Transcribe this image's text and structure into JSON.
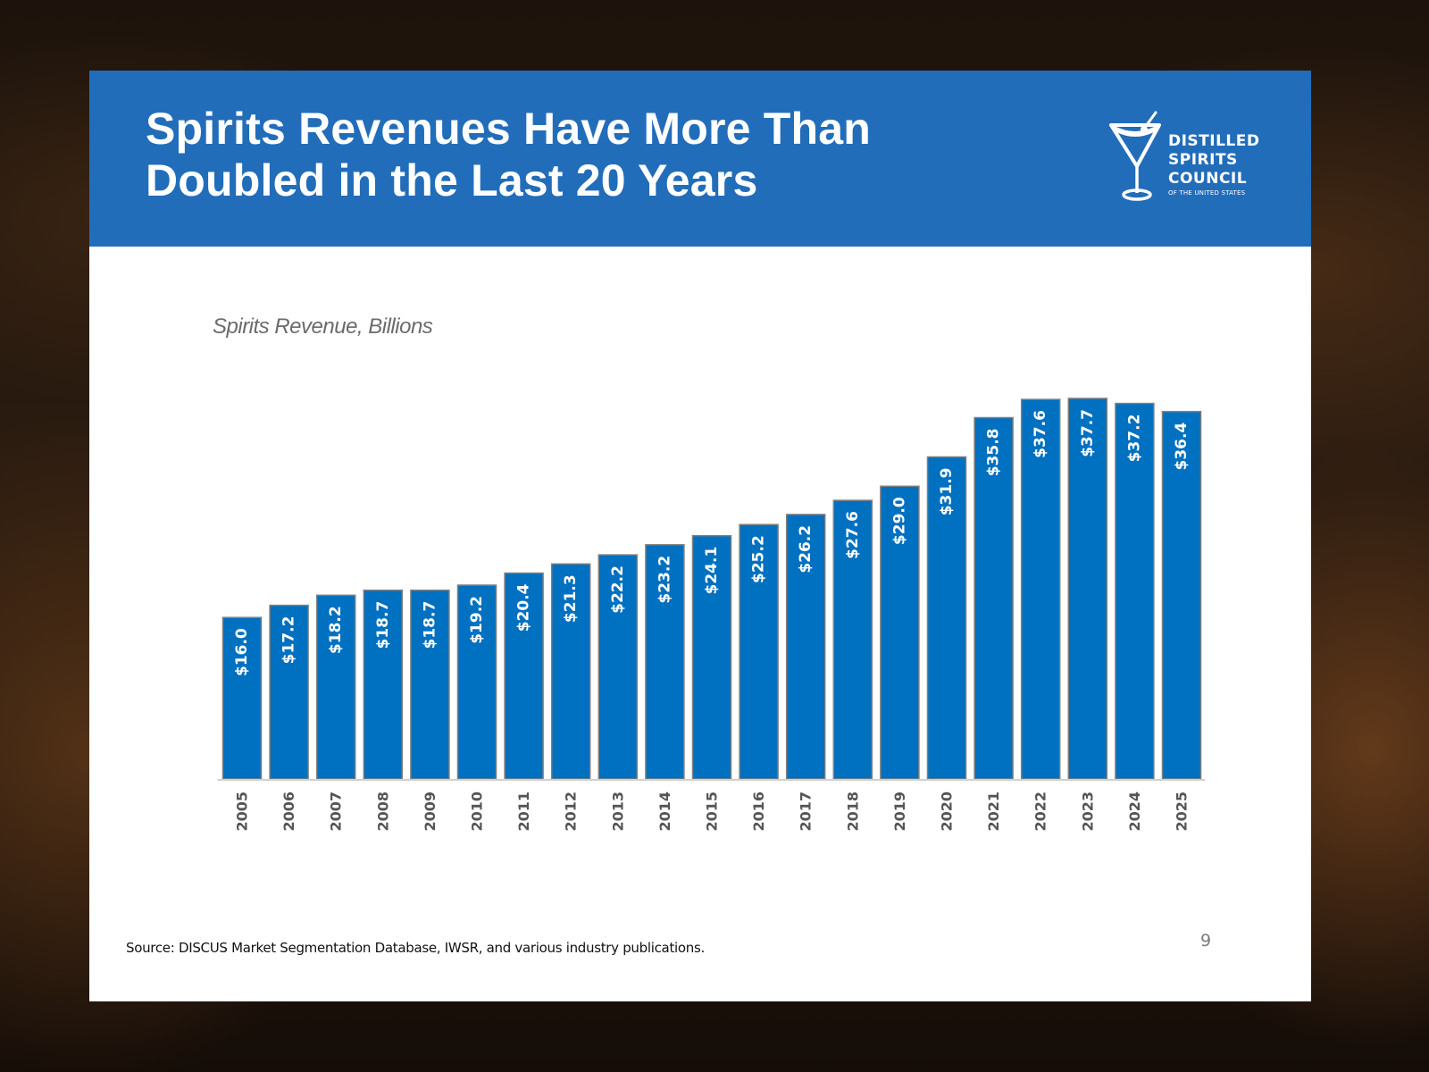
{
  "header": {
    "title_lines": [
      "Spirits Revenues Have More Than",
      "Doubled in the Last 20 Years"
    ],
    "background_color": "#226dba"
  },
  "logo": {
    "icon": "martini-glass-icon",
    "lines": [
      "DISTILLED",
      "SPIRITS",
      "COUNCIL"
    ],
    "tagline": "OF THE UNITED STATES"
  },
  "footer": {
    "source": "Source: DISCUS Market Segmentation Database, IWSR, and various industry publications.",
    "page_number": "9"
  },
  "chart_data": {
    "type": "bar",
    "title": "Spirits Revenue, Billions",
    "xlabel": "",
    "ylabel": "",
    "categories": [
      "2005",
      "2006",
      "2007",
      "2008",
      "2009",
      "2010",
      "2011",
      "2012",
      "2013",
      "2014",
      "2015",
      "2016",
      "2017",
      "2018",
      "2019",
      "2020",
      "2021",
      "2022",
      "2023",
      "2024",
      "2025"
    ],
    "values": [
      16.0,
      17.2,
      18.2,
      18.7,
      18.7,
      19.2,
      20.4,
      21.3,
      22.2,
      23.2,
      24.1,
      25.2,
      26.2,
      27.6,
      29.0,
      31.9,
      35.8,
      37.6,
      37.7,
      37.2,
      36.4
    ],
    "data_labels": [
      "$16.0",
      "$17.2",
      "$18.2",
      "$18.7",
      "$18.7",
      "$19.2",
      "$20.4",
      "$21.3",
      "$22.2",
      "$23.2",
      "$24.1",
      "$25.2",
      "$26.2",
      "$27.6",
      "$29.0",
      "$31.9",
      "$35.8",
      "$37.6",
      "$37.7",
      "$37.2",
      "$36.4"
    ],
    "ylim": [
      0,
      37.7
    ],
    "grid": false,
    "legend": "none",
    "bar_color": "#0070c0",
    "label_color": "#ffffff",
    "tick_label_color": "#555555"
  }
}
